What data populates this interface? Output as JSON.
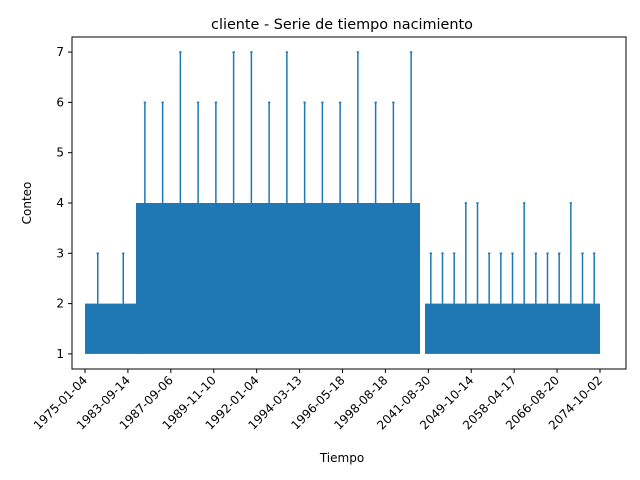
{
  "chart_data": {
    "type": "line",
    "title": "cliente - Serie de tiempo nacimiento",
    "xlabel": "Tiempo",
    "ylabel": "Conteo",
    "x_tick_labels": [
      "1975-01-04",
      "1983-09-14",
      "1987-09-06",
      "1989-11-10",
      "1992-01-04",
      "1994-03-13",
      "1996-05-18",
      "1998-08-18",
      "2041-08-30",
      "2049-10-14",
      "2058-04-17",
      "2066-08-20",
      "2074-10-02"
    ],
    "y_ticks": [
      1,
      2,
      3,
      4,
      5,
      6,
      7
    ],
    "ylim": [
      0.7,
      7.3
    ],
    "grid": false,
    "legend": "none",
    "color": "#1f77b4",
    "series": [
      {
        "values_segments": [
          {
            "x_range": [
              "1975-01-04",
              "1983-09-14"
            ],
            "min": 1,
            "max_typical": 2,
            "peaks": [
              3,
              3
            ]
          },
          {
            "x_range": [
              "1983-09-14",
              "1998-08-18"
            ],
            "min": 1,
            "max_typical": 4,
            "peaks": [
              6,
              6,
              7,
              6,
              6,
              7,
              7,
              6,
              7,
              6,
              6,
              6,
              7,
              6,
              6,
              7
            ]
          },
          {
            "x_range": [
              "2041-08-30",
              "2074-10-02"
            ],
            "min": 1,
            "max_typical": 2,
            "peaks": [
              3,
              3,
              3,
              4,
              4,
              3,
              3,
              3,
              4,
              3,
              3,
              3,
              4,
              3,
              3
            ]
          }
        ]
      }
    ]
  }
}
